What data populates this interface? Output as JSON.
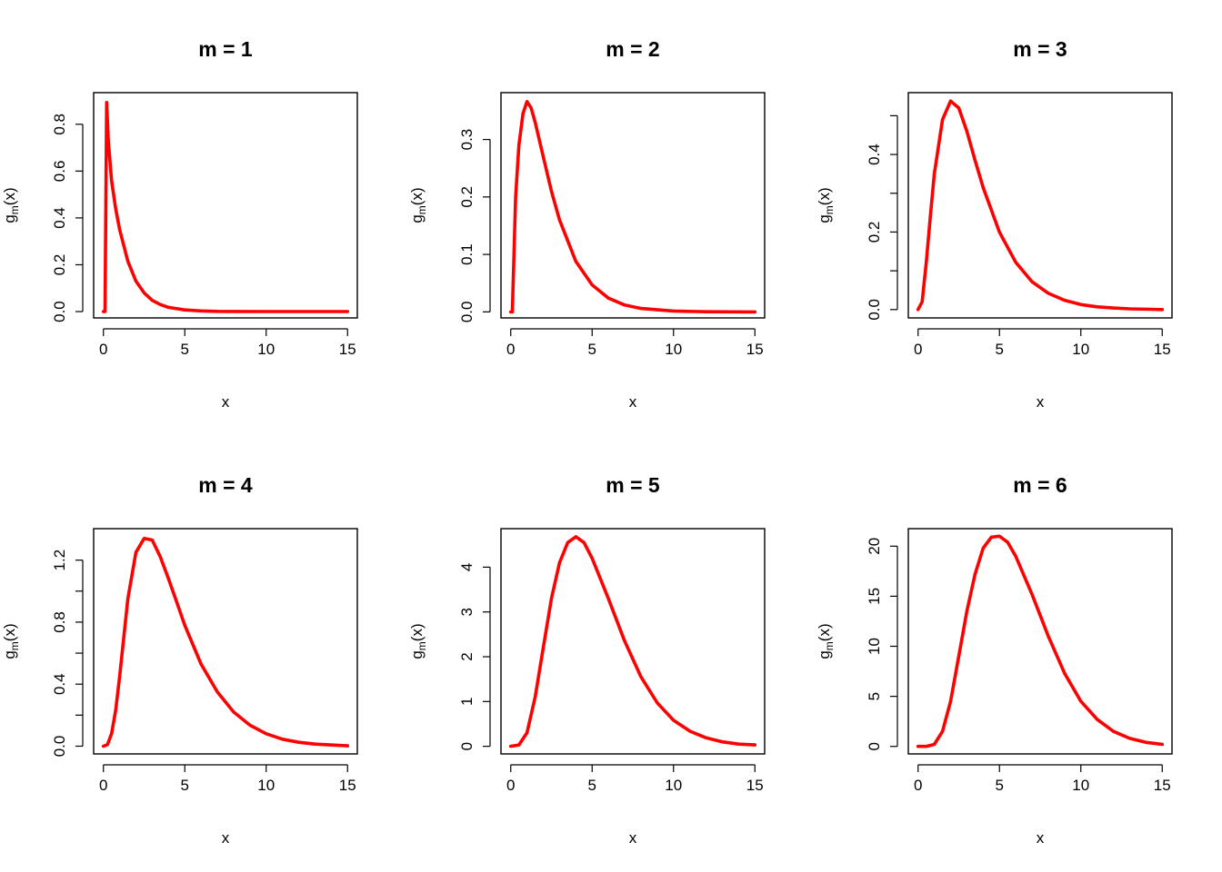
{
  "chart_data": [
    {
      "type": "line",
      "title": "m =  1",
      "xlabel": "x",
      "ylabel": "g_m(x)",
      "ylabel_main": "g",
      "ylabel_sub": "m",
      "ylabel_tail": "(x)",
      "xlim": [
        -0.6,
        15.6
      ],
      "ylim": [
        -0.027,
        0.935
      ],
      "xticks": [
        0,
        5,
        10,
        15
      ],
      "xtick_labels": [
        "0",
        "5",
        "10",
        "15"
      ],
      "yticks": [
        0,
        0.2,
        0.4,
        0.6,
        0.8
      ],
      "ytick_labels": [
        "0.0",
        "0.2",
        "0.4",
        "0.6",
        "0.8"
      ],
      "line_color": "#ff0000",
      "series": [
        {
          "x": [
            0,
            0.1,
            0.2,
            0.3,
            0.5,
            0.75,
            1,
            1.5,
            2,
            2.5,
            3,
            3.5,
            4,
            5,
            6,
            7,
            8,
            10,
            12,
            15
          ],
          "y": [
            0,
            0.0,
            0.893,
            0.73,
            0.56,
            0.44,
            0.35,
            0.215,
            0.13,
            0.08,
            0.048,
            0.03,
            0.018,
            0.007,
            0.003,
            0.001,
            0.0005,
            0.0001,
            0.0,
            0.0
          ]
        }
      ]
    },
    {
      "type": "line",
      "title": "m =  2",
      "xlabel": "x",
      "ylabel": "g_m(x)",
      "ylabel_main": "g",
      "ylabel_sub": "m",
      "ylabel_tail": "(x)",
      "xlim": [
        -0.6,
        15.6
      ],
      "ylim": [
        -0.0105,
        0.3815
      ],
      "xticks": [
        0,
        5,
        10,
        15
      ],
      "xtick_labels": [
        "0",
        "5",
        "10",
        "15"
      ],
      "yticks": [
        0,
        0.1,
        0.2,
        0.3
      ],
      "ytick_labels": [
        "0.0",
        "0.1",
        "0.2",
        "0.3"
      ],
      "line_color": "#ff0000",
      "series": [
        {
          "x": [
            0,
            0.1,
            0.3,
            0.5,
            0.75,
            1,
            1.25,
            1.5,
            2,
            2.5,
            3,
            4,
            5,
            6,
            7,
            8,
            10,
            12,
            15
          ],
          "y": [
            0,
            0.0,
            0.2,
            0.29,
            0.345,
            0.366,
            0.355,
            0.33,
            0.27,
            0.21,
            0.16,
            0.088,
            0.047,
            0.024,
            0.012,
            0.006,
            0.0015,
            0.0003,
            0.0
          ]
        }
      ]
    },
    {
      "type": "line",
      "title": "m =  3",
      "xlabel": "x",
      "ylabel": "g_m(x)",
      "ylabel_main": "g",
      "ylabel_sub": "m",
      "ylabel_tail": "(x)",
      "xlim": [
        -0.6,
        15.6
      ],
      "ylim": [
        -0.0215,
        0.5595
      ],
      "xticks": [
        0,
        5,
        10,
        15
      ],
      "xtick_labels": [
        "0",
        "5",
        "10",
        "15"
      ],
      "yticks": [
        0,
        0.2,
        0.4
      ],
      "ytick_labels": [
        "0.0",
        "0.2",
        "0.4"
      ],
      "minor_yticks": [
        0.1,
        0.3,
        0.5
      ],
      "line_color": "#ff0000",
      "series": [
        {
          "x": [
            0,
            0.25,
            0.5,
            0.75,
            1,
            1.5,
            2,
            2.5,
            3,
            3.5,
            4,
            5,
            6,
            7,
            8,
            9,
            10,
            11,
            12,
            13,
            15
          ],
          "y": [
            0,
            0.02,
            0.12,
            0.24,
            0.35,
            0.49,
            0.538,
            0.52,
            0.46,
            0.385,
            0.315,
            0.2,
            0.122,
            0.072,
            0.042,
            0.024,
            0.013,
            0.007,
            0.004,
            0.002,
            0.0
          ]
        }
      ]
    },
    {
      "type": "line",
      "title": "m =  4",
      "xlabel": "x",
      "ylabel": "g_m(x)",
      "ylabel_main": "g",
      "ylabel_sub": "m",
      "ylabel_tail": "(x)",
      "xlim": [
        -0.6,
        15.6
      ],
      "ylim": [
        -0.05,
        1.403
      ],
      "xticks": [
        0,
        5,
        10,
        15
      ],
      "xtick_labels": [
        "0",
        "5",
        "10",
        "15"
      ],
      "yticks": [
        0,
        0.4,
        0.8,
        1.2
      ],
      "ytick_labels": [
        "0.0",
        "0.4",
        "0.8",
        "1.2"
      ],
      "minor_yticks": [
        0.2,
        0.6,
        1.0
      ],
      "line_color": "#ff0000",
      "series": [
        {
          "x": [
            0,
            0.25,
            0.5,
            0.75,
            1,
            1.5,
            2,
            2.5,
            3,
            3.5,
            4,
            4.5,
            5,
            6,
            7,
            8,
            9,
            10,
            11,
            12,
            13,
            15
          ],
          "y": [
            0,
            0.01,
            0.08,
            0.23,
            0.45,
            0.95,
            1.25,
            1.34,
            1.33,
            1.22,
            1.08,
            0.93,
            0.78,
            0.53,
            0.35,
            0.22,
            0.135,
            0.08,
            0.045,
            0.025,
            0.013,
            0.002
          ]
        }
      ]
    },
    {
      "type": "line",
      "title": "m =  5",
      "xlabel": "x",
      "ylabel": "g_m(x)",
      "ylabel_main": "g",
      "ylabel_sub": "m",
      "ylabel_tail": "(x)",
      "xlim": [
        -0.6,
        15.6
      ],
      "ylim": [
        -0.17,
        4.86
      ],
      "xticks": [
        0,
        5,
        10,
        15
      ],
      "xtick_labels": [
        "0",
        "5",
        "10",
        "15"
      ],
      "yticks": [
        0,
        1,
        2,
        3,
        4
      ],
      "ytick_labels": [
        "0",
        "1",
        "2",
        "3",
        "4"
      ],
      "line_color": "#ff0000",
      "series": [
        {
          "x": [
            0,
            0.5,
            1,
            1.5,
            2,
            2.5,
            3,
            3.5,
            4,
            4.5,
            5,
            6,
            7,
            8,
            9,
            10,
            11,
            12,
            13,
            14,
            15
          ],
          "y": [
            0,
            0.03,
            0.3,
            1.1,
            2.2,
            3.3,
            4.1,
            4.55,
            4.68,
            4.55,
            4.2,
            3.3,
            2.35,
            1.55,
            0.97,
            0.58,
            0.34,
            0.19,
            0.1,
            0.05,
            0.03
          ]
        }
      ]
    },
    {
      "type": "line",
      "title": "m =  6",
      "xlabel": "x",
      "ylabel": "g_m(x)",
      "ylabel_main": "g",
      "ylabel_sub": "m",
      "ylabel_tail": "(x)",
      "xlim": [
        -0.6,
        15.6
      ],
      "ylim": [
        -0.75,
        21.75
      ],
      "xticks": [
        0,
        5,
        10,
        15
      ],
      "xtick_labels": [
        "0",
        "5",
        "10",
        "15"
      ],
      "yticks": [
        0,
        5,
        10,
        15,
        20
      ],
      "ytick_labels": [
        "0",
        "5",
        "10",
        "15",
        "20"
      ],
      "line_color": "#ff0000",
      "series": [
        {
          "x": [
            0,
            0.5,
            1,
            1.5,
            2,
            2.5,
            3,
            3.5,
            4,
            4.5,
            5,
            5.5,
            6,
            7,
            8,
            9,
            10,
            11,
            12,
            13,
            14,
            15
          ],
          "y": [
            0,
            0.0,
            0.2,
            1.5,
            4.5,
            9,
            13.5,
            17.2,
            19.8,
            20.9,
            21.0,
            20.4,
            19.0,
            15.2,
            11.0,
            7.3,
            4.5,
            2.7,
            1.5,
            0.8,
            0.4,
            0.2
          ]
        }
      ]
    }
  ]
}
